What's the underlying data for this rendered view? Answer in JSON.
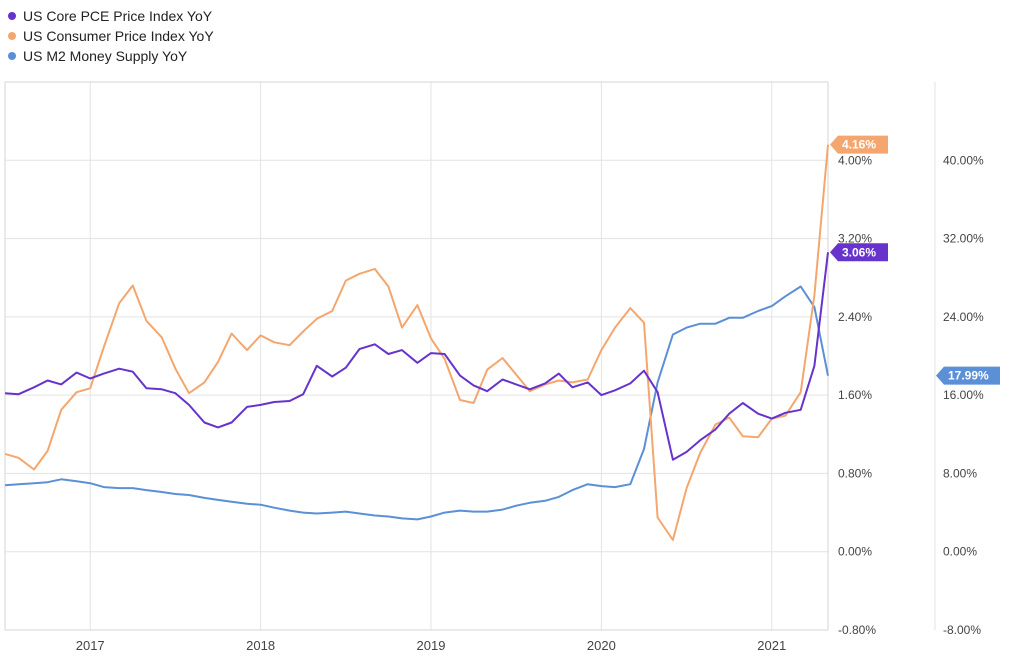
{
  "legend": {
    "items": [
      {
        "label": "US Core PCE Price Index YoY",
        "color": "#6633cc"
      },
      {
        "label": "US Consumer Price Index YoY",
        "color": "#f5a66e"
      },
      {
        "label": "US M2 Money Supply YoY",
        "color": "#5b8fd6"
      }
    ]
  },
  "chart_data": {
    "type": "line",
    "title": "",
    "xlabel": "",
    "grid": true,
    "legend_position": "top-left",
    "x_ticks": [
      "2017",
      "2018",
      "2019",
      "2020",
      "2021"
    ],
    "x_range": [
      2016.5,
      2021.33
    ],
    "y_left": {
      "range": [
        -0.8,
        4.8
      ],
      "ticks": [
        "-0.80%",
        "0.00%",
        "0.80%",
        "1.60%",
        "2.40%",
        "3.20%",
        "4.00%"
      ]
    },
    "y_right": {
      "range": [
        -8,
        48
      ],
      "ticks": [
        "-8.00%",
        "0.00%",
        "8.00%",
        "16.00%",
        "24.00%",
        "32.00%",
        "40.00%"
      ]
    },
    "series": [
      {
        "name": "US Core PCE Price Index YoY",
        "axis": "left",
        "color": "#6633cc",
        "last_value_label": "3.06%",
        "x": [
          2016.5,
          2016.58,
          2016.67,
          2016.75,
          2016.83,
          2016.92,
          2017.0,
          2017.08,
          2017.17,
          2017.25,
          2017.33,
          2017.42,
          2017.5,
          2017.58,
          2017.67,
          2017.75,
          2017.83,
          2017.92,
          2018.0,
          2018.08,
          2018.17,
          2018.25,
          2018.33,
          2018.42,
          2018.5,
          2018.58,
          2018.67,
          2018.75,
          2018.83,
          2018.92,
          2019.0,
          2019.08,
          2019.17,
          2019.25,
          2019.33,
          2019.42,
          2019.5,
          2019.58,
          2019.67,
          2019.75,
          2019.83,
          2019.92,
          2020.0,
          2020.08,
          2020.17,
          2020.25,
          2020.33,
          2020.42,
          2020.5,
          2020.58,
          2020.67,
          2020.75,
          2020.83,
          2020.92,
          2021.0,
          2021.08,
          2021.17,
          2021.25,
          2021.33
        ],
        "y": [
          1.62,
          1.61,
          1.68,
          1.75,
          1.71,
          1.83,
          1.77,
          1.82,
          1.87,
          1.84,
          1.67,
          1.66,
          1.62,
          1.5,
          1.32,
          1.27,
          1.32,
          1.48,
          1.5,
          1.53,
          1.54,
          1.61,
          1.9,
          1.79,
          1.88,
          2.07,
          2.12,
          2.02,
          2.06,
          1.93,
          2.03,
          2.02,
          1.8,
          1.7,
          1.64,
          1.76,
          1.71,
          1.66,
          1.72,
          1.82,
          1.68,
          1.73,
          1.6,
          1.65,
          1.72,
          1.85,
          1.63,
          0.94,
          1.02,
          1.14,
          1.25,
          1.41,
          1.52,
          1.41,
          1.36,
          1.42,
          1.45,
          1.9,
          3.06
        ]
      },
      {
        "name": "US Consumer Price Index YoY",
        "axis": "left",
        "color": "#f5a66e",
        "last_value_label": "4.16%",
        "x": [
          2016.5,
          2016.58,
          2016.67,
          2016.75,
          2016.83,
          2016.92,
          2017.0,
          2017.08,
          2017.17,
          2017.25,
          2017.33,
          2017.42,
          2017.5,
          2017.58,
          2017.67,
          2017.75,
          2017.83,
          2017.92,
          2018.0,
          2018.08,
          2018.17,
          2018.25,
          2018.33,
          2018.42,
          2018.5,
          2018.58,
          2018.67,
          2018.75,
          2018.83,
          2018.92,
          2019.0,
          2019.08,
          2019.17,
          2019.25,
          2019.33,
          2019.42,
          2019.5,
          2019.58,
          2019.67,
          2019.75,
          2019.83,
          2019.92,
          2020.0,
          2020.08,
          2020.17,
          2020.25,
          2020.33,
          2020.42,
          2020.5,
          2020.58,
          2020.67,
          2020.75,
          2020.83,
          2020.92,
          2021.0,
          2021.08,
          2021.17,
          2021.25,
          2021.33
        ],
        "y": [
          1.0,
          0.96,
          0.84,
          1.03,
          1.45,
          1.63,
          1.67,
          2.09,
          2.54,
          2.72,
          2.36,
          2.19,
          1.87,
          1.62,
          1.73,
          1.94,
          2.23,
          2.06,
          2.21,
          2.14,
          2.11,
          2.25,
          2.38,
          2.46,
          2.77,
          2.84,
          2.89,
          2.71,
          2.29,
          2.52,
          2.18,
          1.97,
          1.55,
          1.52,
          1.86,
          1.98,
          1.81,
          1.64,
          1.71,
          1.75,
          1.73,
          1.76,
          2.06,
          2.29,
          2.49,
          2.34,
          0.35,
          0.12,
          0.65,
          1.01,
          1.3,
          1.37,
          1.18,
          1.17,
          1.36,
          1.39,
          1.63,
          2.62,
          4.16
        ]
      },
      {
        "name": "US M2 Money Supply YoY",
        "axis": "right",
        "color": "#5b8fd6",
        "last_value_label": "17.99%",
        "x": [
          2016.5,
          2016.58,
          2016.67,
          2016.75,
          2016.83,
          2016.92,
          2017.0,
          2017.08,
          2017.17,
          2017.25,
          2017.33,
          2017.42,
          2017.5,
          2017.58,
          2017.67,
          2017.75,
          2017.83,
          2017.92,
          2018.0,
          2018.08,
          2018.17,
          2018.25,
          2018.33,
          2018.42,
          2018.5,
          2018.58,
          2018.67,
          2018.75,
          2018.83,
          2018.92,
          2019.0,
          2019.08,
          2019.17,
          2019.25,
          2019.33,
          2019.42,
          2019.5,
          2019.58,
          2019.67,
          2019.75,
          2019.83,
          2019.92,
          2020.0,
          2020.08,
          2020.17,
          2020.25,
          2020.33,
          2020.42,
          2020.5,
          2020.58,
          2020.67,
          2020.75,
          2020.83,
          2020.92,
          2021.0,
          2021.08,
          2021.17,
          2021.25,
          2021.33
        ],
        "y": [
          6.8,
          6.9,
          7.0,
          7.1,
          7.4,
          7.2,
          7.0,
          6.6,
          6.5,
          6.5,
          6.3,
          6.1,
          5.9,
          5.8,
          5.5,
          5.3,
          5.1,
          4.9,
          4.8,
          4.5,
          4.2,
          4.0,
          3.9,
          4.0,
          4.1,
          3.9,
          3.7,
          3.6,
          3.4,
          3.3,
          3.6,
          4.0,
          4.2,
          4.1,
          4.1,
          4.3,
          4.7,
          5.0,
          5.2,
          5.6,
          6.3,
          6.9,
          6.7,
          6.6,
          6.9,
          10.5,
          17.3,
          22.2,
          22.9,
          23.3,
          23.3,
          23.9,
          23.9,
          24.6,
          25.1,
          26.1,
          27.1,
          25.0,
          17.99
        ]
      }
    ]
  }
}
